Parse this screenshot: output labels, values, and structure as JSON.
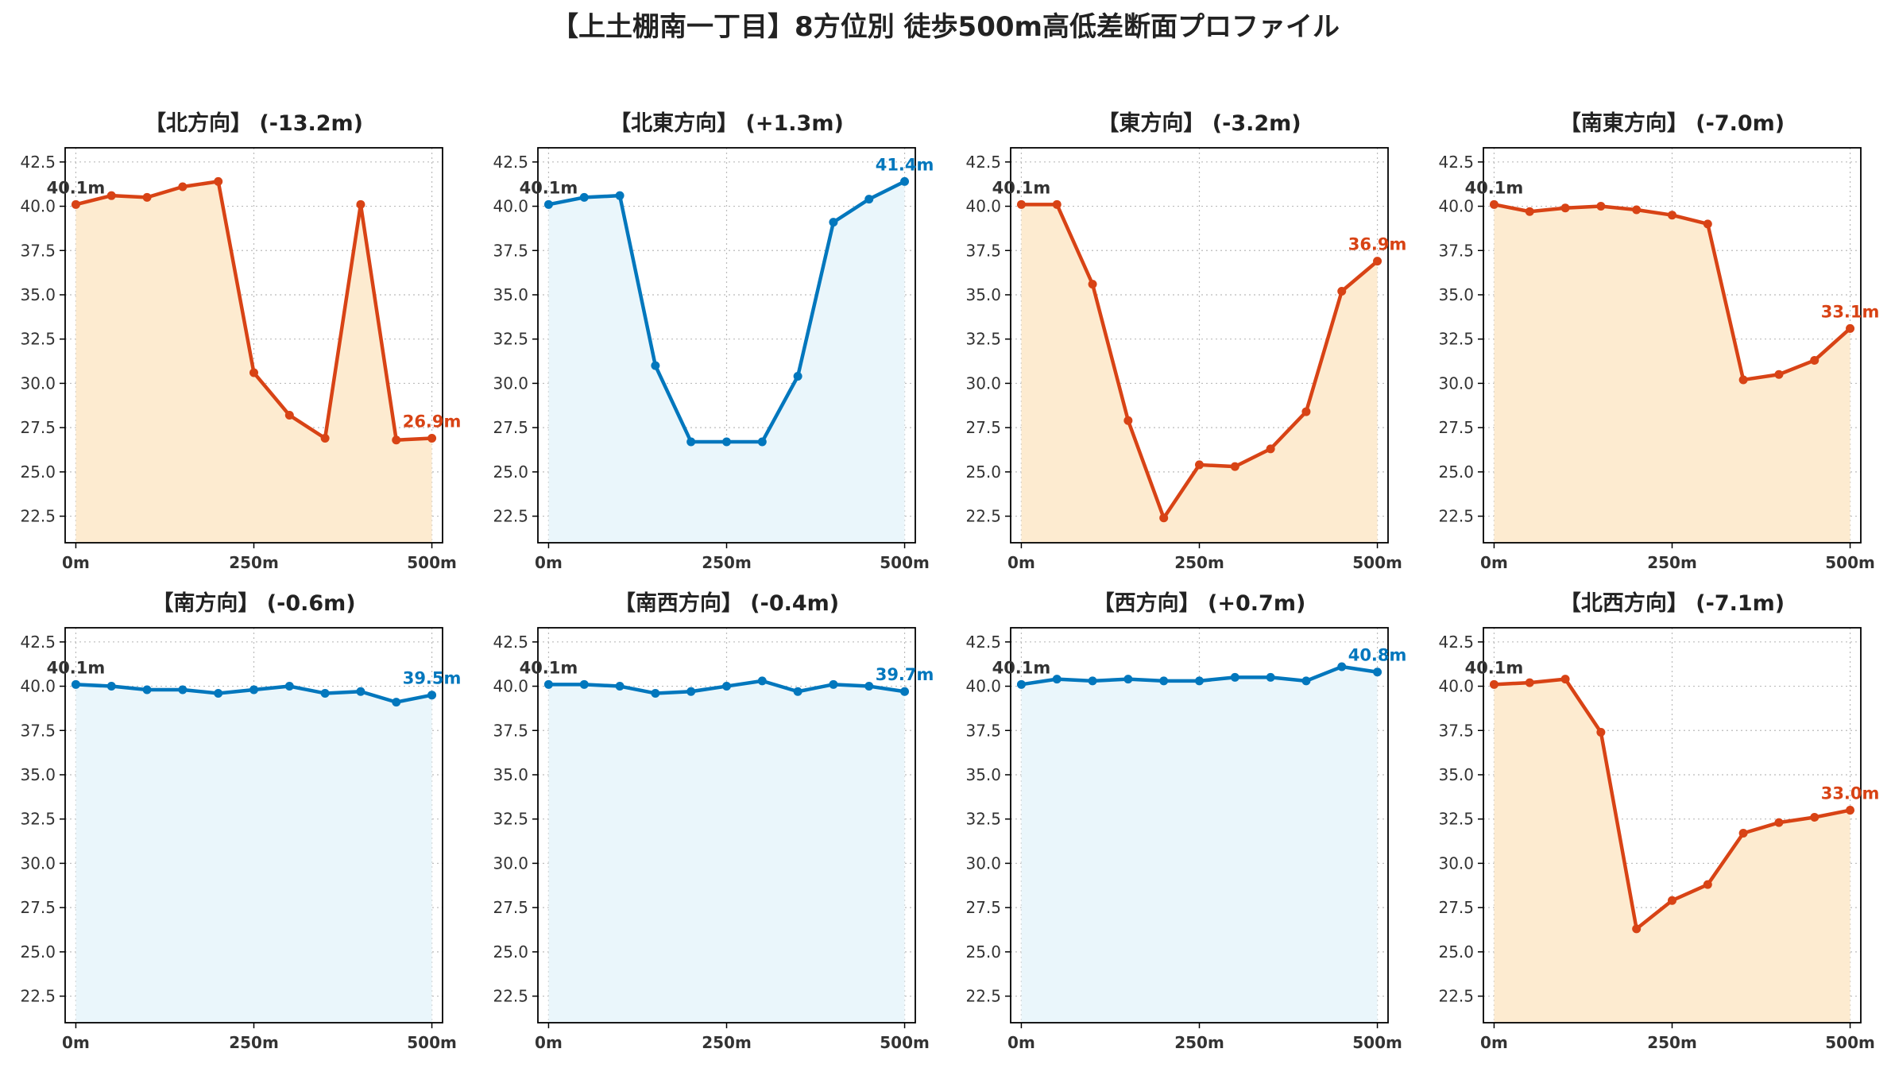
{
  "page": {
    "title": "【上土棚南一丁目】8方位別 徒歩500m高低差断面プロファイル"
  },
  "colors": {
    "down_line": "#D84315",
    "down_fill": "#FDEBD0",
    "up_line": "#0277BD",
    "up_fill": "#EAF6FB",
    "start_label": "#333333",
    "axis": "#000000",
    "grid": "#BBBBBB"
  },
  "chart_data": [
    {
      "type": "area",
      "title": "【北方向】 (-13.2m)",
      "trend": "down",
      "x": [
        0,
        50,
        100,
        150,
        200,
        250,
        300,
        350,
        400,
        450,
        500
      ],
      "y": [
        40.1,
        40.6,
        40.5,
        41.1,
        41.4,
        30.6,
        28.2,
        26.9,
        40.1,
        26.8,
        26.9
      ],
      "start_label": "40.1m",
      "end_label": "26.9m",
      "xticks": [
        "0m",
        "250m",
        "500m"
      ],
      "yticks": [
        "22.5",
        "25.0",
        "27.5",
        "30.0",
        "32.5",
        "35.0",
        "37.5",
        "40.0",
        "42.5"
      ],
      "xlim": [
        -15,
        515
      ],
      "ylim": [
        21.0,
        43.3
      ],
      "grid": true
    },
    {
      "type": "area",
      "title": "【北東方向】 (+1.3m)",
      "trend": "up",
      "x": [
        0,
        50,
        100,
        150,
        200,
        250,
        300,
        350,
        400,
        450,
        500
      ],
      "y": [
        40.1,
        40.5,
        40.6,
        31.0,
        26.7,
        26.7,
        26.7,
        30.4,
        39.1,
        40.4,
        41.4
      ],
      "start_label": "40.1m",
      "end_label": "41.4m",
      "xticks": [
        "0m",
        "250m",
        "500m"
      ],
      "yticks": [
        "22.5",
        "25.0",
        "27.5",
        "30.0",
        "32.5",
        "35.0",
        "37.5",
        "40.0",
        "42.5"
      ],
      "xlim": [
        -15,
        515
      ],
      "ylim": [
        21.0,
        43.3
      ],
      "grid": true
    },
    {
      "type": "area",
      "title": "【東方向】 (-3.2m)",
      "trend": "down",
      "x": [
        0,
        50,
        100,
        150,
        200,
        250,
        300,
        350,
        400,
        450,
        500
      ],
      "y": [
        40.1,
        40.1,
        35.6,
        27.9,
        22.4,
        25.4,
        25.3,
        26.3,
        28.4,
        35.2,
        36.9
      ],
      "start_label": "40.1m",
      "end_label": "36.9m",
      "xticks": [
        "0m",
        "250m",
        "500m"
      ],
      "yticks": [
        "22.5",
        "25.0",
        "27.5",
        "30.0",
        "32.5",
        "35.0",
        "37.5",
        "40.0",
        "42.5"
      ],
      "xlim": [
        -15,
        515
      ],
      "ylim": [
        21.0,
        43.3
      ],
      "grid": true
    },
    {
      "type": "area",
      "title": "【南東方向】 (-7.0m)",
      "trend": "down",
      "x": [
        0,
        50,
        100,
        150,
        200,
        250,
        300,
        350,
        400,
        450,
        500
      ],
      "y": [
        40.1,
        39.7,
        39.9,
        40.0,
        39.8,
        39.5,
        39.0,
        30.2,
        30.5,
        31.3,
        33.1
      ],
      "start_label": "40.1m",
      "end_label": "33.1m",
      "xticks": [
        "0m",
        "250m",
        "500m"
      ],
      "yticks": [
        "22.5",
        "25.0",
        "27.5",
        "30.0",
        "32.5",
        "35.0",
        "37.5",
        "40.0",
        "42.5"
      ],
      "xlim": [
        -15,
        515
      ],
      "ylim": [
        21.0,
        43.3
      ],
      "grid": true
    },
    {
      "type": "area",
      "title": "【南方向】 (-0.6m)",
      "trend": "up",
      "x": [
        0,
        50,
        100,
        150,
        200,
        250,
        300,
        350,
        400,
        450,
        500
      ],
      "y": [
        40.1,
        40.0,
        39.8,
        39.8,
        39.6,
        39.8,
        40.0,
        39.6,
        39.7,
        39.1,
        39.5
      ],
      "start_label": "40.1m",
      "end_label": "39.5m",
      "xticks": [
        "0m",
        "250m",
        "500m"
      ],
      "yticks": [
        "22.5",
        "25.0",
        "27.5",
        "30.0",
        "32.5",
        "35.0",
        "37.5",
        "40.0",
        "42.5"
      ],
      "xlim": [
        -15,
        515
      ],
      "ylim": [
        21.0,
        43.3
      ],
      "grid": true
    },
    {
      "type": "area",
      "title": "【南西方向】 (-0.4m)",
      "trend": "up",
      "x": [
        0,
        50,
        100,
        150,
        200,
        250,
        300,
        350,
        400,
        450,
        500
      ],
      "y": [
        40.1,
        40.1,
        40.0,
        39.6,
        39.7,
        40.0,
        40.3,
        39.7,
        40.1,
        40.0,
        39.7
      ],
      "start_label": "40.1m",
      "end_label": "39.7m",
      "xticks": [
        "0m",
        "250m",
        "500m"
      ],
      "yticks": [
        "22.5",
        "25.0",
        "27.5",
        "30.0",
        "32.5",
        "35.0",
        "37.5",
        "40.0",
        "42.5"
      ],
      "xlim": [
        -15,
        515
      ],
      "ylim": [
        21.0,
        43.3
      ],
      "grid": true
    },
    {
      "type": "area",
      "title": "【西方向】 (+0.7m)",
      "trend": "up",
      "x": [
        0,
        50,
        100,
        150,
        200,
        250,
        300,
        350,
        400,
        450,
        500
      ],
      "y": [
        40.1,
        40.4,
        40.3,
        40.4,
        40.3,
        40.3,
        40.5,
        40.5,
        40.3,
        41.1,
        40.8
      ],
      "start_label": "40.1m",
      "end_label": "40.8m",
      "xticks": [
        "0m",
        "250m",
        "500m"
      ],
      "yticks": [
        "22.5",
        "25.0",
        "27.5",
        "30.0",
        "32.5",
        "35.0",
        "37.5",
        "40.0",
        "42.5"
      ],
      "xlim": [
        -15,
        515
      ],
      "ylim": [
        21.0,
        43.3
      ],
      "grid": true
    },
    {
      "type": "area",
      "title": "【北西方向】 (-7.1m)",
      "trend": "down",
      "x": [
        0,
        50,
        100,
        150,
        200,
        250,
        300,
        350,
        400,
        450,
        500
      ],
      "y": [
        40.1,
        40.2,
        40.4,
        37.4,
        26.3,
        27.9,
        28.8,
        31.7,
        32.3,
        32.6,
        33.0
      ],
      "start_label": "40.1m",
      "end_label": "33.0m",
      "xticks": [
        "0m",
        "250m",
        "500m"
      ],
      "yticks": [
        "22.5",
        "25.0",
        "27.5",
        "30.0",
        "32.5",
        "35.0",
        "37.5",
        "40.0",
        "42.5"
      ],
      "xlim": [
        -15,
        515
      ],
      "ylim": [
        21.0,
        43.3
      ],
      "grid": true
    }
  ]
}
